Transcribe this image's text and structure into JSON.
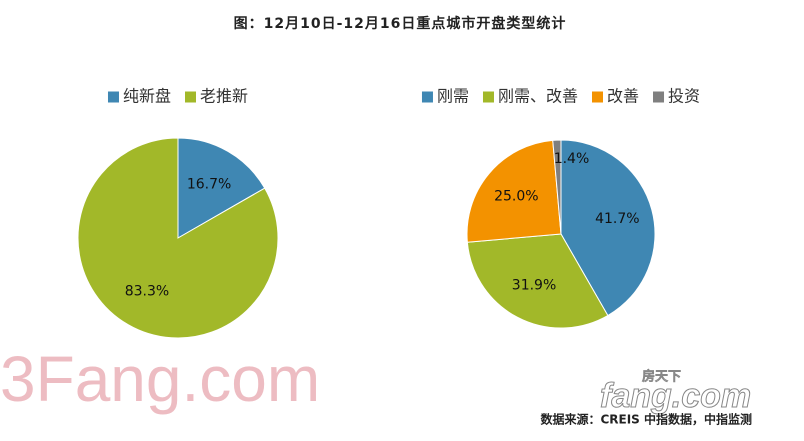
{
  "title": "图：12月10日-12月16日重点城市开盘类型统计",
  "source": "数据来源：CREIS 中指数据，中指监测",
  "watermark": "3Fang.com",
  "watermark2": "fang.com",
  "watermark3": "房天下",
  "chart_data": [
    {
      "type": "pie",
      "categories": [
        "纯新盘",
        "老推新"
      ],
      "values": [
        16.7,
        83.3
      ],
      "value_labels": [
        "16.7%",
        "83.3%"
      ],
      "colors": [
        "#3f87b3",
        "#a2b829"
      ]
    },
    {
      "type": "pie",
      "categories": [
        "刚需",
        "刚需、改善",
        "改善",
        "投资"
      ],
      "values": [
        41.7,
        31.9,
        25.0,
        1.4
      ],
      "value_labels": [
        "41.7%",
        "31.9%",
        "25.0%",
        "1.4%"
      ],
      "colors": [
        "#3f87b3",
        "#a2b829",
        "#f39200",
        "#7f7f7f"
      ]
    }
  ]
}
